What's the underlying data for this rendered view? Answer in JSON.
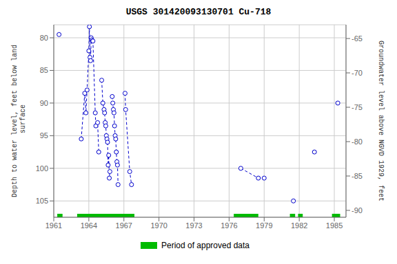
{
  "chart_data": {
    "type": "line",
    "title": "USGS 301420093130701 Cu-718",
    "y_label": "Depth to water level, feet below land\n surface",
    "y2_label": "Groundwater level above NGVD 1929, feet",
    "xlim": [
      1961,
      1986
    ],
    "xticks": [
      1961,
      1964,
      1967,
      1970,
      1973,
      1976,
      1979,
      1982,
      1985
    ],
    "ylim": [
      107.5,
      78
    ],
    "yticks": [
      80,
      85,
      90,
      95,
      100,
      105
    ],
    "y2lim": [
      -91.0,
      -63.0
    ],
    "y2ticks": [
      -65,
      -70,
      -75,
      -80,
      -85,
      -90
    ],
    "grid": true,
    "series": [
      {
        "color": "#0000cc",
        "line_style": "dashed",
        "marker": "circle",
        "x": [
          1961.45
        ],
        "values": [
          79.5
        ]
      },
      {
        "color": "#0000cc",
        "line_style": "dashed",
        "marker": "circle",
        "x": [
          1963.35,
          1963.65,
          1963.75,
          1963.85,
          1964.0,
          1964.05,
          1964.1,
          1964.15,
          1964.2,
          1964.25,
          1964.3,
          1964.35,
          1964.55,
          1964.6,
          1964.75,
          1964.85
        ],
        "values": [
          95.5,
          88.5,
          91.5,
          88.0,
          82.0,
          78.3,
          83.0,
          83.5,
          80.0,
          80.3,
          80.5,
          80.5,
          91.5,
          93.5,
          93.0,
          97.5
        ]
      },
      {
        "color": "#0000cc",
        "line_style": "dashed",
        "marker": "circle",
        "x": [
          1965.1,
          1965.2,
          1965.3,
          1965.35,
          1965.4,
          1965.45,
          1965.5,
          1965.55,
          1965.6,
          1965.65,
          1965.7,
          1965.75,
          1965.8
        ],
        "values": [
          86.5,
          90.0,
          91.0,
          91.5,
          93.0,
          93.5,
          95.0,
          95.5,
          96.0,
          99.5,
          98.0,
          101.5,
          100.5
        ]
      },
      {
        "color": "#0000cc",
        "line_style": "dashed",
        "marker": "circle",
        "x": [
          1966.0,
          1966.05,
          1966.1,
          1966.15,
          1966.2,
          1966.25,
          1966.3,
          1966.35,
          1966.4,
          1966.45,
          1966.5
        ],
        "values": [
          89.0,
          90.0,
          91.0,
          91.5,
          93.5,
          95.0,
          95.5,
          97.5,
          99.0,
          99.5,
          102.5
        ]
      },
      {
        "color": "#0000cc",
        "line_style": "dashed",
        "marker": "circle",
        "x": [
          1967.1,
          1967.15,
          1967.5,
          1967.65
        ],
        "values": [
          88.5,
          91.0,
          100.5,
          102.5
        ]
      },
      {
        "color": "#0000cc",
        "line_style": "dashed",
        "marker": "circle",
        "x": [
          1977.0,
          1978.5,
          1979.0
        ],
        "values": [
          100.0,
          101.5,
          101.5
        ]
      },
      {
        "color": "#0000cc",
        "line_style": "dashed",
        "marker": "circle",
        "x": [
          1981.5
        ],
        "values": [
          105.0
        ]
      },
      {
        "color": "#0000cc",
        "line_style": "dashed",
        "marker": "circle",
        "x": [
          1983.3
        ],
        "values": [
          97.5
        ]
      },
      {
        "color": "#0000cc",
        "line_style": "dashed",
        "marker": "circle",
        "x": [
          1985.3
        ],
        "values": [
          90.0
        ]
      }
    ],
    "bands": [
      {
        "name": "Period of approved data",
        "color": "#00bb00",
        "ranges": [
          [
            1961.3,
            1961.75
          ],
          [
            1963.0,
            1967.9
          ],
          [
            1976.4,
            1978.5
          ],
          [
            1981.2,
            1981.65
          ],
          [
            1981.9,
            1982.3
          ],
          [
            1984.8,
            1985.5
          ]
        ]
      }
    ]
  }
}
